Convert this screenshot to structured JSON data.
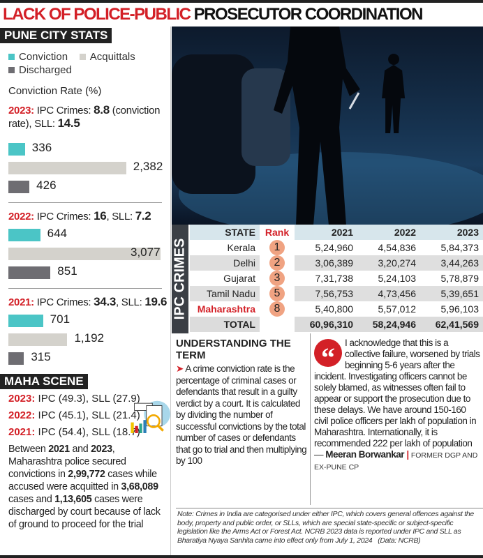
{
  "title": {
    "part_red": "LACK OF POLICE-PUBLIC",
    "part_black": "PROSECUTOR COORDINATION"
  },
  "pune": {
    "header": "PUNE CITY STATS",
    "legend": [
      {
        "label": "Conviction",
        "color": "#4bc5c6"
      },
      {
        "label": "Acquittals",
        "color": "#d4d2cc"
      },
      {
        "label": "Discharged",
        "color": "#6e6d72"
      }
    ],
    "rate_label": "Conviction Rate (%)",
    "years": [
      {
        "year": "2023:",
        "text_a": " IPC Crimes: ",
        "ipc": "8.8",
        "text_b": " (conviction rate), SLL: ",
        "sll": "14.5",
        "conviction": "336",
        "acquittals": "2,382",
        "discharged": "426"
      },
      {
        "year": "2022:",
        "text_a": " IPC Crimes: ",
        "ipc": "16",
        "text_b": ", SLL: ",
        "sll": "7.2",
        "conviction": "644",
        "acquittals": "3,077",
        "discharged": "851"
      },
      {
        "year": "2021:",
        "text_a": " IPC Crimes: ",
        "ipc": "34.3",
        "text_b": ", SLL: ",
        "sll": "19.6",
        "conviction": "701",
        "acquittals": "1,192",
        "discharged": "315"
      }
    ]
  },
  "chart_data": {
    "type": "bar",
    "orientation": "horizontal",
    "categories": [
      "2023",
      "2022",
      "2021"
    ],
    "series": [
      {
        "name": "Conviction",
        "values": [
          336,
          644,
          701
        ],
        "color": "#4bc5c6"
      },
      {
        "name": "Acquittals",
        "values": [
          2382,
          3077,
          1192
        ],
        "color": "#d4d2cc"
      },
      {
        "name": "Discharged",
        "values": [
          426,
          851,
          315
        ],
        "color": "#6e6d72"
      }
    ],
    "legend": "top-left",
    "grid": false
  },
  "maha": {
    "header": "MAHA SCENE",
    "rows": [
      {
        "year": "2023:",
        "text": " IPC (49.3), SLL (27.9)"
      },
      {
        "year": "2022:",
        "text": " IPC (45.1), SLL (21.4)"
      },
      {
        "year": "2021:",
        "text": " IPC (54.4), SLL (18.7)"
      }
    ],
    "para": {
      "t1": "Between ",
      "b1": "2021",
      "t2": " and ",
      "b2": "2023",
      "t3": ", Maharashtra police secured convictions in ",
      "b3": "2,99,772",
      "t4": " cases while accused were acquitted in ",
      "b4": "3,68,089",
      "t5": " cases and ",
      "b5": "1,13,605",
      "t6": " cases were discharged by court because of lack of ground to proceed for the trial"
    }
  },
  "ipc_table": {
    "side_label": "IPC CRIMES",
    "headers": [
      "STATE",
      "Rank",
      "2021",
      "2022",
      "2023"
    ],
    "rows": [
      {
        "state": "Kerala",
        "rank": "1",
        "y2021": "5,24,960",
        "y2022": "4,54,836",
        "y2023": "5,84,373"
      },
      {
        "state": "Delhi",
        "rank": "2",
        "y2021": "3,06,389",
        "y2022": "3,20,274",
        "y2023": "3,44,263"
      },
      {
        "state": "Gujarat",
        "rank": "3",
        "y2021": "7,31,738",
        "y2022": "5,24,103",
        "y2023": "5,78,879"
      },
      {
        "state": "Tamil Nadu",
        "rank": "5",
        "y2021": "7,56,753",
        "y2022": "4,73,456",
        "y2023": "5,39,651"
      },
      {
        "state": "Maharashtra",
        "rank": "8",
        "y2021": "5,40,800",
        "y2022": "5,57,012",
        "y2023": "5,96,103"
      }
    ],
    "total": {
      "label": "TOTAL",
      "y2021": "60,96,310",
      "y2022": "58,24,946",
      "y2023": "62,41,569"
    }
  },
  "term": {
    "heading": "UNDERSTANDING THE TERM",
    "bullet": "➤",
    "body": " A crime conviction rate is the percentage of criminal cases or defendants that result in a guilty verdict by a court. It is calculated by dividing the number of successful convictions by the total number of cases or defendants that go to trial and then multiplying by 100"
  },
  "quote": {
    "icon": "quote-icon",
    "text": "I acknowledge that this is a collective failure, worsened by trials beginning 5-6 years after the incident. Investigating officers cannot be solely blamed, as witnesses often fail to appear or support the prosecution due to these delays. We have around 150-160 civil police officers per lakh of population in Maharashtra. Internationally, it is recommended 222 per lakh of population — ",
    "name": "Meeran Borwankar",
    "sep": " | ",
    "designation": "FORMER DGP AND EX-PUNE CP"
  },
  "note": {
    "text": "Note: Crimes in India are categorised under either IPC, which covers general offences against the body, property and public order, or SLLs, which are special state-specific or subject-specific legislation like the Arms Act or Forest Act. NCRB 2023 data is reported under IPC and SLL as Bharatiya Nyaya Sanhita came into effect only from July 1, 2024",
    "source": "(Data: NCRB)"
  }
}
